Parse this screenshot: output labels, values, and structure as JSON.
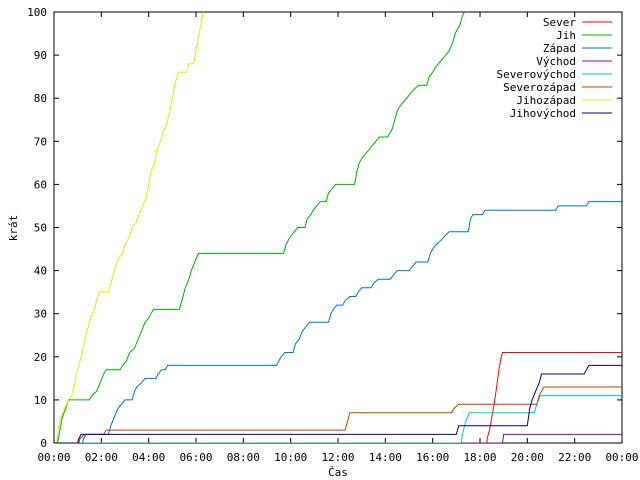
{
  "chart_data": {
    "type": "line",
    "title": "",
    "xlabel": "Čas",
    "ylabel": "krát",
    "xlim": [
      0,
      24
    ],
    "ylim": [
      0,
      100
    ],
    "xticks": [
      {
        "v": 0,
        "label": "00:00"
      },
      {
        "v": 2,
        "label": "02:00"
      },
      {
        "v": 4,
        "label": "04:00"
      },
      {
        "v": 6,
        "label": "06:00"
      },
      {
        "v": 8,
        "label": "08:00"
      },
      {
        "v": 10,
        "label": "10:00"
      },
      {
        "v": 12,
        "label": "12:00"
      },
      {
        "v": 14,
        "label": "14:00"
      },
      {
        "v": 16,
        "label": "16:00"
      },
      {
        "v": 18,
        "label": "18:00"
      },
      {
        "v": 20,
        "label": "20:00"
      },
      {
        "v": 22,
        "label": "22:00"
      },
      {
        "v": 24,
        "label": "00:00"
      }
    ],
    "yticks": [
      0,
      10,
      20,
      30,
      40,
      50,
      60,
      70,
      80,
      90,
      100
    ],
    "legend": "top-right",
    "series": [
      {
        "name": "Sever",
        "color": "#ff0000",
        "points": [
          [
            0,
            0
          ],
          [
            18.3,
            0
          ],
          [
            18.3,
            1
          ],
          [
            18.4,
            3
          ],
          [
            18.5,
            6
          ],
          [
            18.6,
            9
          ],
          [
            18.7,
            13
          ],
          [
            18.8,
            17
          ],
          [
            18.9,
            20
          ],
          [
            18.95,
            21
          ],
          [
            24,
            21
          ]
        ]
      },
      {
        "name": "Jih",
        "color": "#00b000",
        "points": [
          [
            0,
            0
          ],
          [
            0.15,
            0
          ],
          [
            0.25,
            3
          ],
          [
            0.35,
            6
          ],
          [
            0.5,
            8
          ],
          [
            0.6,
            10
          ],
          [
            1.5,
            10
          ],
          [
            1.6,
            11
          ],
          [
            1.8,
            12
          ],
          [
            1.95,
            14
          ],
          [
            2.1,
            16
          ],
          [
            2.2,
            17
          ],
          [
            2.8,
            17
          ],
          [
            2.9,
            18
          ],
          [
            3.05,
            19
          ],
          [
            3.2,
            21
          ],
          [
            3.4,
            22
          ],
          [
            3.55,
            24
          ],
          [
            3.7,
            26
          ],
          [
            3.85,
            28
          ],
          [
            4.0,
            29
          ],
          [
            4.2,
            31
          ],
          [
            5.3,
            31
          ],
          [
            5.4,
            33
          ],
          [
            5.55,
            36
          ],
          [
            5.7,
            38
          ],
          [
            5.8,
            40
          ],
          [
            5.95,
            42
          ],
          [
            6.1,
            44
          ],
          [
            9.7,
            44
          ],
          [
            9.8,
            46
          ],
          [
            9.9,
            47
          ],
          [
            10.0,
            48
          ],
          [
            10.15,
            49
          ],
          [
            10.3,
            50
          ],
          [
            10.6,
            50
          ],
          [
            10.7,
            52
          ],
          [
            10.85,
            53
          ],
          [
            10.95,
            54
          ],
          [
            11.1,
            55
          ],
          [
            11.25,
            56
          ],
          [
            11.5,
            56
          ],
          [
            11.6,
            58
          ],
          [
            11.75,
            59
          ],
          [
            11.9,
            60
          ],
          [
            12.7,
            60
          ],
          [
            12.8,
            63
          ],
          [
            12.9,
            65
          ],
          [
            13.0,
            66
          ],
          [
            13.15,
            67
          ],
          [
            13.3,
            68
          ],
          [
            13.45,
            69
          ],
          [
            13.6,
            70
          ],
          [
            13.75,
            71
          ],
          [
            14.1,
            71
          ],
          [
            14.2,
            72
          ],
          [
            14.3,
            73
          ],
          [
            14.4,
            75
          ],
          [
            14.5,
            77
          ],
          [
            14.6,
            78
          ],
          [
            14.75,
            79
          ],
          [
            14.9,
            80
          ],
          [
            15.05,
            81
          ],
          [
            15.2,
            82
          ],
          [
            15.4,
            83
          ],
          [
            15.75,
            83
          ],
          [
            15.85,
            85
          ],
          [
            16.0,
            86
          ],
          [
            16.1,
            87
          ],
          [
            16.25,
            88
          ],
          [
            16.4,
            89
          ],
          [
            16.55,
            90
          ],
          [
            16.7,
            91
          ],
          [
            16.85,
            93
          ],
          [
            16.95,
            95
          ],
          [
            17.05,
            96
          ],
          [
            17.15,
            97
          ],
          [
            17.25,
            99
          ],
          [
            17.35,
            100
          ]
        ]
      },
      {
        "name": "Západ",
        "color": "#0070d0",
        "points": [
          [
            0,
            0
          ],
          [
            1.2,
            0
          ],
          [
            1.25,
            1
          ],
          [
            1.35,
            2
          ],
          [
            2.3,
            2
          ],
          [
            2.4,
            4
          ],
          [
            2.55,
            6
          ],
          [
            2.7,
            8
          ],
          [
            2.85,
            9
          ],
          [
            3.0,
            10
          ],
          [
            3.3,
            10
          ],
          [
            3.4,
            12
          ],
          [
            3.5,
            13
          ],
          [
            3.7,
            14
          ],
          [
            3.85,
            15
          ],
          [
            4.3,
            15
          ],
          [
            4.4,
            16
          ],
          [
            4.55,
            17
          ],
          [
            4.7,
            17
          ],
          [
            4.8,
            18
          ],
          [
            9.4,
            18
          ],
          [
            9.5,
            19
          ],
          [
            9.6,
            20
          ],
          [
            9.75,
            21
          ],
          [
            10.1,
            21
          ],
          [
            10.2,
            23
          ],
          [
            10.35,
            24
          ],
          [
            10.5,
            26
          ],
          [
            10.65,
            27
          ],
          [
            10.8,
            28
          ],
          [
            11.6,
            28
          ],
          [
            11.7,
            30
          ],
          [
            11.8,
            31
          ],
          [
            11.95,
            32
          ],
          [
            12.2,
            32
          ],
          [
            12.3,
            33
          ],
          [
            12.5,
            34
          ],
          [
            12.75,
            34
          ],
          [
            12.85,
            35
          ],
          [
            13.0,
            36
          ],
          [
            13.4,
            36
          ],
          [
            13.5,
            37
          ],
          [
            13.7,
            38
          ],
          [
            14.2,
            38
          ],
          [
            14.35,
            39
          ],
          [
            14.5,
            40
          ],
          [
            15.0,
            40
          ],
          [
            15.15,
            41
          ],
          [
            15.3,
            42
          ],
          [
            15.8,
            42
          ],
          [
            15.9,
            44
          ],
          [
            16.0,
            45
          ],
          [
            16.15,
            46
          ],
          [
            16.35,
            47
          ],
          [
            16.5,
            48
          ],
          [
            16.7,
            49
          ],
          [
            17.5,
            49
          ],
          [
            17.6,
            52
          ],
          [
            17.7,
            53
          ],
          [
            18.1,
            53
          ],
          [
            18.2,
            54
          ],
          [
            21.2,
            54
          ],
          [
            21.3,
            55
          ],
          [
            22.5,
            55
          ],
          [
            22.6,
            56
          ],
          [
            24,
            56
          ]
        ]
      },
      {
        "name": "Východ",
        "color": "#a000a0",
        "points": [
          [
            0,
            0
          ],
          [
            18.95,
            0
          ],
          [
            19.0,
            2
          ],
          [
            24,
            2
          ]
        ]
      },
      {
        "name": "Severovýchod",
        "color": "#00c8d0",
        "points": [
          [
            0,
            0
          ],
          [
            17.2,
            0
          ],
          [
            17.3,
            3
          ],
          [
            17.4,
            5
          ],
          [
            17.55,
            7
          ],
          [
            17.7,
            7
          ],
          [
            20.3,
            7
          ],
          [
            20.4,
            9
          ],
          [
            20.55,
            11
          ],
          [
            24,
            11
          ]
        ]
      },
      {
        "name": "Severozápad",
        "color": "#c04000",
        "points": [
          [
            0,
            0
          ],
          [
            1.05,
            0
          ],
          [
            1.1,
            1
          ],
          [
            1.3,
            2
          ],
          [
            2.1,
            2
          ],
          [
            2.2,
            3
          ],
          [
            12.3,
            3
          ],
          [
            12.4,
            5
          ],
          [
            12.5,
            7
          ],
          [
            16.8,
            7
          ],
          [
            16.9,
            8
          ],
          [
            17.1,
            9
          ],
          [
            20.4,
            9
          ],
          [
            20.5,
            11
          ],
          [
            20.6,
            12
          ],
          [
            20.7,
            13
          ],
          [
            24,
            13
          ]
        ]
      },
      {
        "name": "Jihozápad",
        "color": "#e8e800",
        "points": [
          [
            0,
            0
          ],
          [
            0.1,
            0
          ],
          [
            0.2,
            4
          ],
          [
            0.3,
            6
          ],
          [
            0.45,
            8
          ],
          [
            0.6,
            10
          ],
          [
            0.75,
            11
          ],
          [
            0.85,
            13
          ],
          [
            0.95,
            16
          ],
          [
            1.05,
            18
          ],
          [
            1.2,
            21
          ],
          [
            1.3,
            24
          ],
          [
            1.45,
            27
          ],
          [
            1.55,
            29
          ],
          [
            1.7,
            31
          ],
          [
            1.8,
            33
          ],
          [
            1.9,
            35
          ],
          [
            2.3,
            35
          ],
          [
            2.4,
            37
          ],
          [
            2.5,
            39
          ],
          [
            2.6,
            41
          ],
          [
            2.75,
            43
          ],
          [
            2.9,
            44
          ],
          [
            3.0,
            46
          ],
          [
            3.1,
            47
          ],
          [
            3.2,
            48
          ],
          [
            3.3,
            50
          ],
          [
            3.45,
            51
          ],
          [
            3.6,
            53
          ],
          [
            3.75,
            55
          ],
          [
            3.9,
            57
          ],
          [
            4.0,
            60
          ],
          [
            4.1,
            63
          ],
          [
            4.25,
            65
          ],
          [
            4.35,
            68
          ],
          [
            4.5,
            70
          ],
          [
            4.6,
            72
          ],
          [
            4.75,
            74
          ],
          [
            4.9,
            77
          ],
          [
            5.0,
            80
          ],
          [
            5.1,
            83
          ],
          [
            5.25,
            86
          ],
          [
            5.6,
            86
          ],
          [
            5.7,
            88
          ],
          [
            5.9,
            88
          ],
          [
            6.0,
            91
          ],
          [
            6.1,
            94
          ],
          [
            6.2,
            97
          ],
          [
            6.3,
            100
          ]
        ]
      },
      {
        "name": "Jihovýchod",
        "color": "#000080",
        "points": [
          [
            0,
            0
          ],
          [
            1.0,
            0
          ],
          [
            1.05,
            1
          ],
          [
            1.15,
            2
          ],
          [
            10.5,
            2
          ],
          [
            10.55,
            2
          ],
          [
            12.6,
            2
          ],
          [
            17.0,
            2
          ],
          [
            17.05,
            3
          ],
          [
            17.1,
            4
          ],
          [
            20.0,
            4
          ],
          [
            20.1,
            8
          ],
          [
            20.2,
            10
          ],
          [
            20.35,
            12
          ],
          [
            20.5,
            14
          ],
          [
            20.6,
            16
          ],
          [
            22.4,
            16
          ],
          [
            22.5,
            17
          ],
          [
            22.6,
            18
          ],
          [
            24,
            18
          ]
        ]
      }
    ]
  }
}
